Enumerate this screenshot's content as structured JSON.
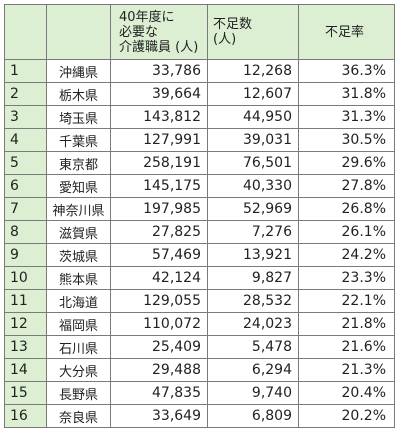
{
  "header": {
    "rank_label": "",
    "pref_label": "",
    "need_lines": [
      "40年度に",
      "必要な",
      "介護職員 (人)"
    ],
    "short_lines": [
      "不足数",
      "(人)"
    ],
    "rate_label": "不足率"
  },
  "rows": [
    {
      "rank": "1",
      "pref": "沖縄県",
      "need": "33,786",
      "short": "12,268",
      "rate": "36.3%"
    },
    {
      "rank": "2",
      "pref": "栃木県",
      "need": "39,664",
      "short": "12,607",
      "rate": "31.8%"
    },
    {
      "rank": "3",
      "pref": "埼玉県",
      "need": "143,812",
      "short": "44,950",
      "rate": "31.3%"
    },
    {
      "rank": "4",
      "pref": "千葉県",
      "need": "127,991",
      "short": "39,031",
      "rate": "30.5%"
    },
    {
      "rank": "5",
      "pref": "東京都",
      "need": "258,191",
      "short": "76,501",
      "rate": "29.6%"
    },
    {
      "rank": "6",
      "pref": "愛知県",
      "need": "145,175",
      "short": "40,330",
      "rate": "27.8%"
    },
    {
      "rank": "7",
      "pref": "神奈川県",
      "need": "197,985",
      "short": "52,969",
      "rate": "26.8%"
    },
    {
      "rank": "8",
      "pref": "滋賀県",
      "need": "27,825",
      "short": "7,276",
      "rate": "26.1%"
    },
    {
      "rank": "9",
      "pref": "茨城県",
      "need": "57,469",
      "short": "13,921",
      "rate": "24.2%"
    },
    {
      "rank": "10",
      "pref": "熊本県",
      "need": "42,124",
      "short": "9,827",
      "rate": "23.3%"
    },
    {
      "rank": "11",
      "pref": "北海道",
      "need": "129,055",
      "short": "28,532",
      "rate": "22.1%"
    },
    {
      "rank": "12",
      "pref": "福岡県",
      "need": "110,072",
      "short": "24,023",
      "rate": "21.8%"
    },
    {
      "rank": "13",
      "pref": "石川県",
      "need": "25,409",
      "short": "5,478",
      "rate": "21.6%"
    },
    {
      "rank": "14",
      "pref": "大分県",
      "need": "29,488",
      "short": "6,294",
      "rate": "21.3%"
    },
    {
      "rank": "15",
      "pref": "長野県",
      "need": "47,835",
      "short": "9,740",
      "rate": "20.4%"
    },
    {
      "rank": "16",
      "pref": "奈良県",
      "need": "33,649",
      "short": "6,809",
      "rate": "20.2%"
    }
  ],
  "colors": {
    "header_bg": "#dcefd3",
    "border": "#7a7a7a",
    "text": "#222222"
  }
}
